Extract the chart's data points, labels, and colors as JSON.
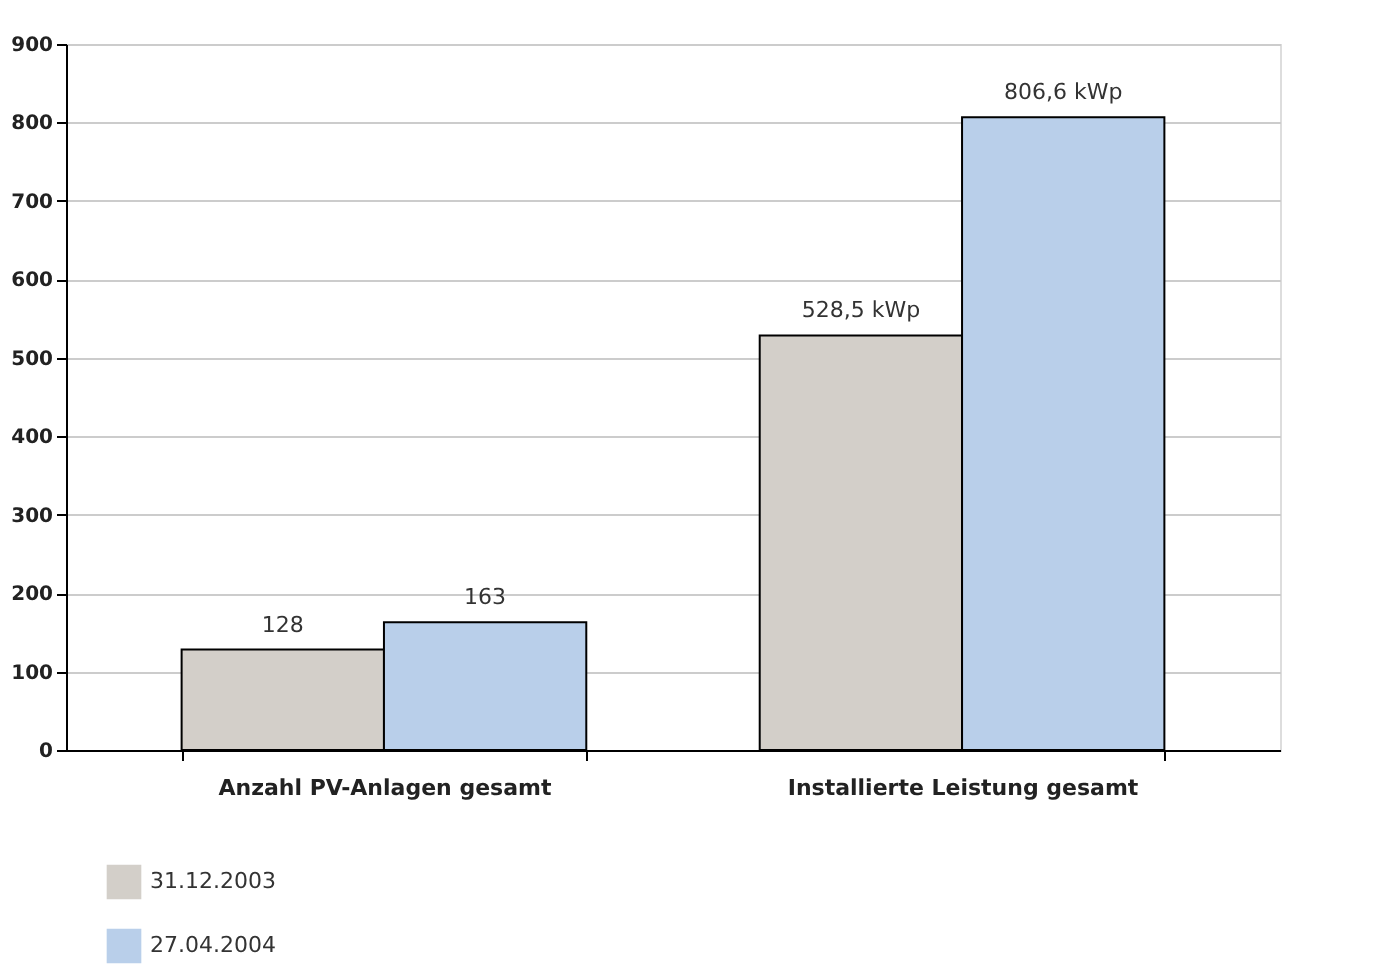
{
  "chart_data": {
    "type": "bar",
    "categories": [
      "Anzahl PV-Anlagen gesamt",
      "Installierte Leistung gesamt"
    ],
    "series": [
      {
        "name": "31.12.2003",
        "color": "#d3cfc9",
        "values": [
          128,
          528.5
        ],
        "value_labels": [
          "128",
          "528,5 kWp"
        ]
      },
      {
        "name": "27.04.2004",
        "color": "#b9cfea",
        "values": [
          163,
          806.6
        ],
        "value_labels": [
          "163",
          "806,6 kWp"
        ]
      }
    ],
    "ylim": [
      0,
      900
    ],
    "yticks": [
      0,
      100,
      200,
      300,
      400,
      500,
      600,
      700,
      800,
      900
    ],
    "grid": "y",
    "legend": "bottom left"
  }
}
